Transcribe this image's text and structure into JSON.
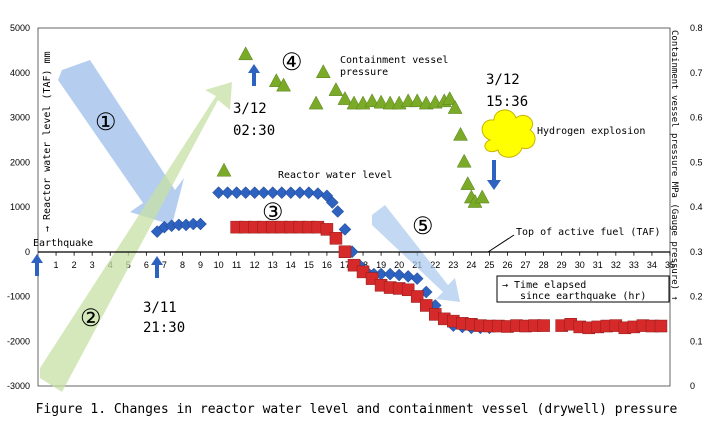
{
  "chart_data": {
    "type": "scatter",
    "caption": "Figure 1. Changes in reactor water level and containment vessel (drywell) pressure",
    "left_axis": {
      "label": "→ Reactor water level (TAF) mm",
      "ylim": [
        -3000,
        5000
      ],
      "ticks": [
        -3000,
        -2000,
        -1000,
        0,
        1000,
        2000,
        3000,
        4000,
        5000
      ]
    },
    "right_axis": {
      "label": "Containment vessel pressure MPa (Gauge pressure) ↑",
      "ylim": [
        0,
        0.8
      ],
      "ticks": [
        "0",
        "0.1",
        "0.2",
        "0.3",
        "0.4",
        "0.5",
        "0.6",
        "0.7",
        "0.8"
      ]
    },
    "x_axis": {
      "label": "→ Time elapsed since earthquake (hr)",
      "xlim": [
        0,
        35
      ],
      "ticks": [
        "1",
        "2",
        "3",
        "4",
        "5",
        "6",
        "7",
        "8",
        "9",
        "10",
        "11",
        "12",
        "13",
        "14",
        "15",
        "16",
        "17",
        "18",
        "19",
        "20",
        "21",
        "22",
        "23",
        "24",
        "25",
        "26",
        "27",
        "28",
        "29",
        "30",
        "31",
        "32",
        "33",
        "34",
        "35"
      ]
    },
    "series": [
      {
        "name": "Reactor water level",
        "color": "#2e62c0",
        "marker": "diamond",
        "axis": "left",
        "points": [
          [
            6.6,
            450
          ],
          [
            7.0,
            550
          ],
          [
            7.4,
            580
          ],
          [
            7.8,
            600
          ],
          [
            8.2,
            600
          ],
          [
            8.6,
            620
          ],
          [
            9.0,
            620
          ],
          [
            10.0,
            1320
          ],
          [
            10.5,
            1320
          ],
          [
            11.0,
            1320
          ],
          [
            11.5,
            1320
          ],
          [
            12.0,
            1320
          ],
          [
            12.5,
            1320
          ],
          [
            13.0,
            1320
          ],
          [
            13.5,
            1320
          ],
          [
            14.0,
            1320
          ],
          [
            14.5,
            1320
          ],
          [
            15.0,
            1320
          ],
          [
            15.5,
            1300
          ],
          [
            16.0,
            1250
          ],
          [
            16.3,
            1100
          ],
          [
            16.6,
            900
          ],
          [
            17.0,
            500
          ],
          [
            17.4,
            0
          ],
          [
            17.8,
            -300
          ],
          [
            18.2,
            -450
          ],
          [
            18.6,
            -500
          ],
          [
            19.0,
            -500
          ],
          [
            19.5,
            -500
          ],
          [
            20.0,
            -520
          ],
          [
            20.5,
            -550
          ],
          [
            21.0,
            -600
          ],
          [
            21.5,
            -900
          ],
          [
            22.0,
            -1200
          ],
          [
            22.5,
            -1500
          ],
          [
            23.0,
            -1650
          ],
          [
            23.5,
            -1680
          ],
          [
            24.0,
            -1700
          ],
          [
            24.5,
            -1700
          ],
          [
            25.0,
            -1700
          ]
        ]
      },
      {
        "name": "Reactor water level (red)",
        "color": "#d62a2a",
        "marker": "square",
        "axis": "left",
        "points": [
          [
            11.0,
            550
          ],
          [
            11.5,
            550
          ],
          [
            12.0,
            550
          ],
          [
            12.5,
            550
          ],
          [
            13.0,
            550
          ],
          [
            13.5,
            550
          ],
          [
            14.0,
            550
          ],
          [
            14.5,
            550
          ],
          [
            15.0,
            550
          ],
          [
            15.5,
            550
          ],
          [
            16.0,
            500
          ],
          [
            16.5,
            300
          ],
          [
            17.0,
            0
          ],
          [
            17.5,
            -300
          ],
          [
            18.0,
            -450
          ],
          [
            18.5,
            -600
          ],
          [
            19.0,
            -750
          ],
          [
            19.5,
            -800
          ],
          [
            20.0,
            -820
          ],
          [
            20.5,
            -850
          ],
          [
            21.0,
            -1000
          ],
          [
            21.5,
            -1200
          ],
          [
            22.0,
            -1400
          ],
          [
            22.5,
            -1500
          ],
          [
            23.0,
            -1550
          ],
          [
            23.5,
            -1600
          ],
          [
            24.0,
            -1620
          ],
          [
            24.5,
            -1650
          ],
          [
            25.0,
            -1660
          ],
          [
            25.5,
            -1660
          ],
          [
            26.0,
            -1670
          ],
          [
            26.5,
            -1650
          ],
          [
            27.0,
            -1660
          ],
          [
            27.5,
            -1650
          ],
          [
            28.0,
            -1650
          ],
          [
            29.0,
            -1650
          ],
          [
            29.5,
            -1620
          ],
          [
            30.0,
            -1680
          ],
          [
            30.5,
            -1700
          ],
          [
            31.0,
            -1680
          ],
          [
            31.5,
            -1660
          ],
          [
            32.0,
            -1650
          ],
          [
            32.5,
            -1700
          ],
          [
            33.0,
            -1680
          ],
          [
            33.5,
            -1650
          ],
          [
            34.0,
            -1660
          ],
          [
            34.5,
            -1660
          ]
        ]
      },
      {
        "name": "Containment vessel pressure",
        "color": "#7aaa28",
        "marker": "triangle",
        "axis": "right",
        "points": [
          [
            10.3,
            0.48
          ],
          [
            11.5,
            0.74
          ],
          [
            13.2,
            0.68
          ],
          [
            13.6,
            0.67
          ],
          [
            15.4,
            0.63
          ],
          [
            15.8,
            0.7
          ],
          [
            16.5,
            0.66
          ],
          [
            17.0,
            0.64
          ],
          [
            17.5,
            0.63
          ],
          [
            18.0,
            0.63
          ],
          [
            18.5,
            0.635
          ],
          [
            19.0,
            0.632
          ],
          [
            19.5,
            0.63
          ],
          [
            20.0,
            0.63
          ],
          [
            20.5,
            0.635
          ],
          [
            21.0,
            0.635
          ],
          [
            21.5,
            0.63
          ],
          [
            22.0,
            0.632
          ],
          [
            22.5,
            0.635
          ],
          [
            22.8,
            0.64
          ],
          [
            23.1,
            0.62
          ],
          [
            23.4,
            0.56
          ],
          [
            23.6,
            0.5
          ],
          [
            23.8,
            0.45
          ],
          [
            24.0,
            0.42
          ],
          [
            24.2,
            0.41
          ],
          [
            24.6,
            0.42
          ]
        ]
      }
    ],
    "annotations": {
      "earthquake": "Earthquake",
      "t1": "3/11",
      "t1b": "21:30",
      "t2": "3/12",
      "t2b": "02:30",
      "t3": "3/12",
      "t3b": "15:36",
      "explosion": "Hydrogen explosion",
      "taf": "Top of active fuel (TAF)",
      "water_level": "Reactor water level",
      "pressure_1": "Containment vessel",
      "pressure_2": "pressure",
      "time_1": "→ Time elapsed",
      "time_2": "since earthquake (hr)",
      "n1": "①",
      "n2": "②",
      "n3": "③",
      "n4": "④",
      "n5": "⑤"
    },
    "grid": false,
    "legend": "none"
  }
}
